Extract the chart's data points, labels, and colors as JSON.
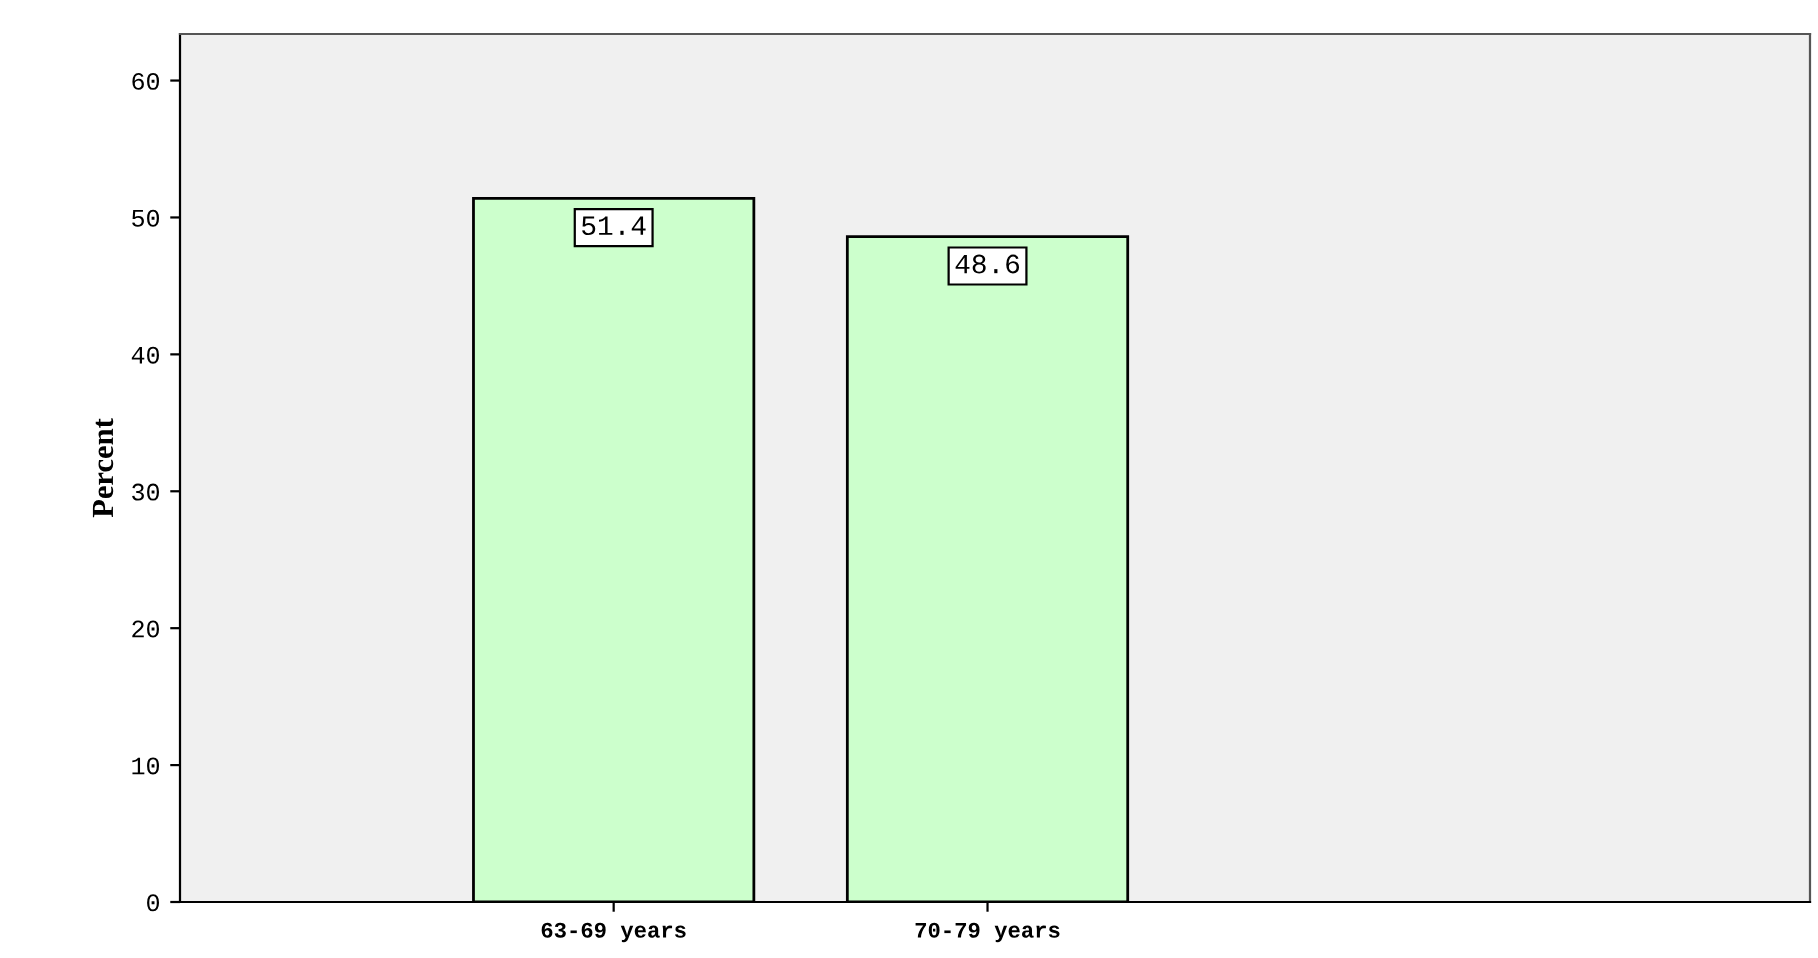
{
  "chart_data": {
    "type": "bar",
    "ylabel": "Percent",
    "categories": [
      "63-69 years",
      "70-79 years"
    ],
    "values": [
      51.4,
      48.6
    ],
    "color": "#ccffcc",
    "ylim": [
      0,
      63.4
    ],
    "yticks": [
      0,
      10,
      20,
      30,
      40,
      50,
      60
    ],
    "grid": false,
    "data_labels": true
  }
}
